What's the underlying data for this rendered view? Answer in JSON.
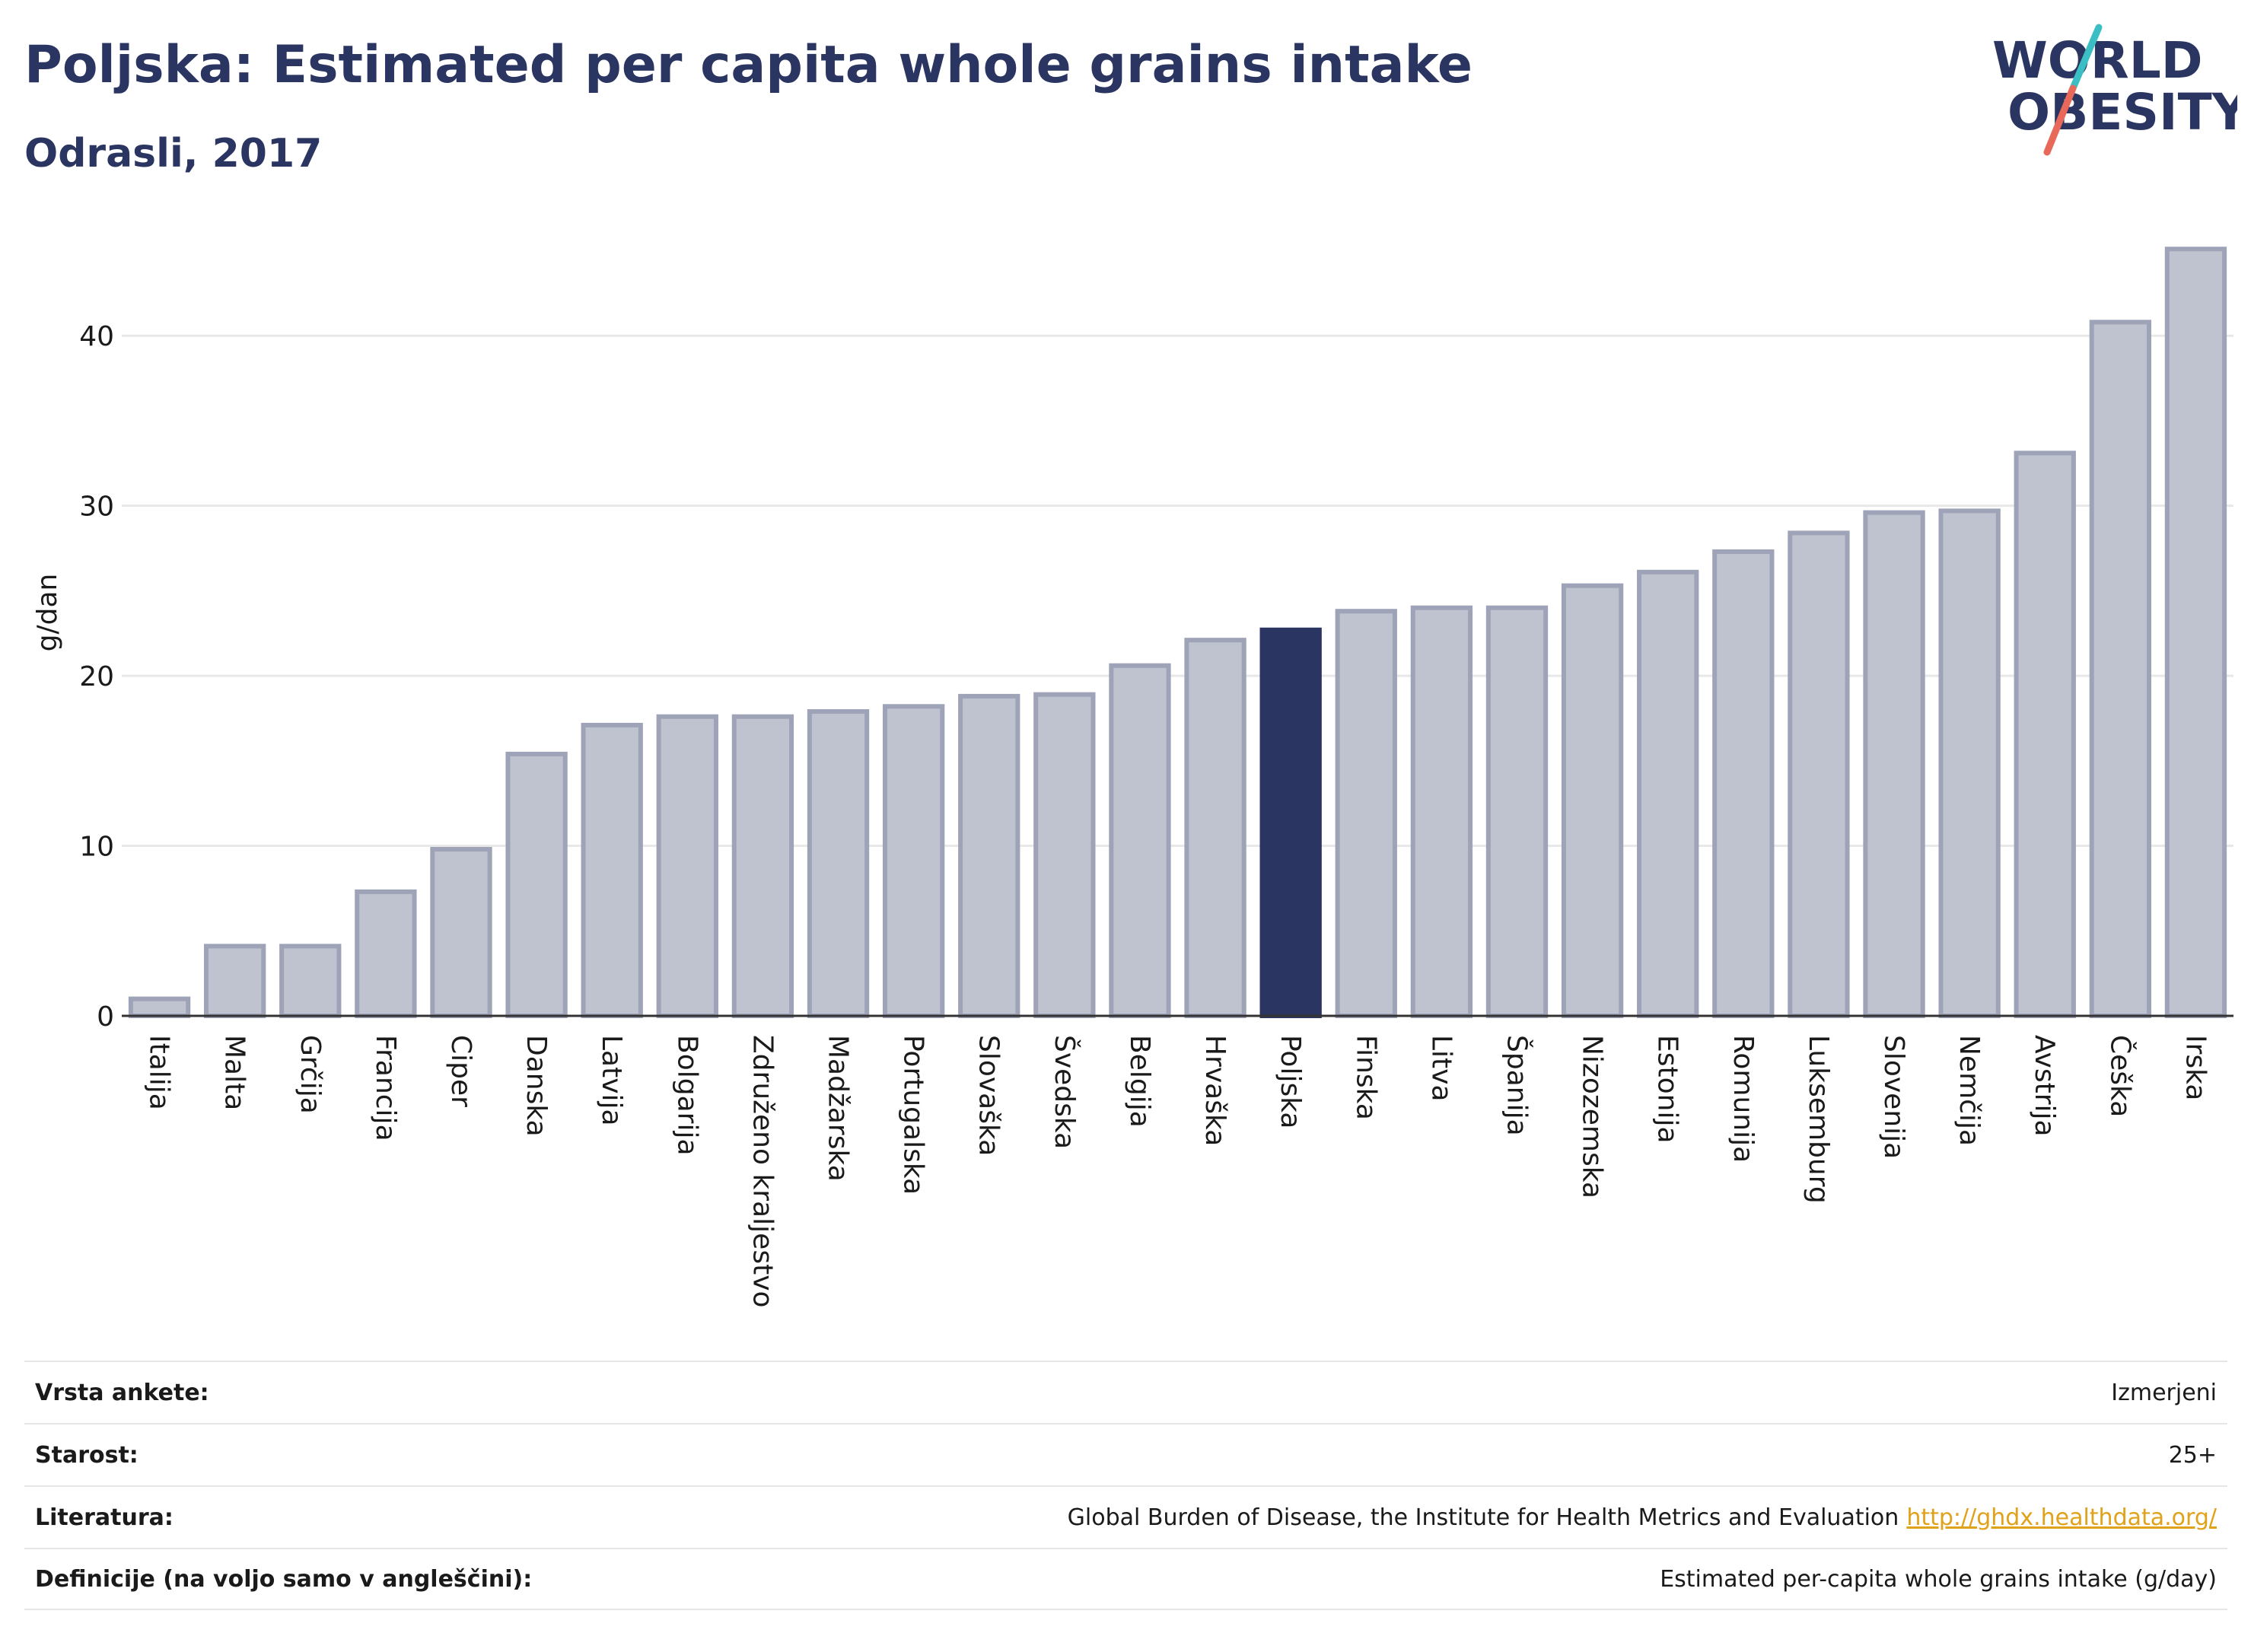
{
  "header": {
    "title": "Poljska: Estimated per capita whole grains intake",
    "subtitle": "Odrasli, 2017"
  },
  "logo": {
    "line1": "WORLD",
    "line2": "OBESITY",
    "colors": {
      "text": "#2b3561",
      "slash_teal": "#3bbfc4",
      "slash_coral": "#e8685a"
    }
  },
  "colors": {
    "bar_default": "#bfc2cf",
    "bar_default_stroke": "#9ea3b8",
    "bar_highlight": "#2b3561",
    "grid": "#e8e8e8",
    "axis": "#333333"
  },
  "chart_data": {
    "type": "bar",
    "ylabel": "g/dan",
    "ylim": [
      0,
      45.2
    ],
    "yticks": [
      0,
      10,
      20,
      30,
      40
    ],
    "grid": true,
    "highlight": "Poljska",
    "categories": [
      "Italija",
      "Malta",
      "Grčija",
      "Francija",
      "Ciper",
      "Danska",
      "Latvija",
      "Bolgarija",
      "Združeno kraljestvo",
      "Madžarska",
      "Portugalska",
      "Slovaška",
      "Švedska",
      "Belgija",
      "Hrvaška",
      "Poljska",
      "Finska",
      "Litva",
      "Španija",
      "Nizozemska",
      "Estonija",
      "Romunija",
      "Luksemburg",
      "Slovenija",
      "Nemčija",
      "Avstrija",
      "Češka",
      "Irska"
    ],
    "values": [
      1.0,
      4.1,
      4.1,
      7.3,
      9.8,
      15.4,
      17.1,
      17.6,
      17.6,
      17.9,
      18.2,
      18.8,
      18.9,
      20.6,
      22.1,
      22.7,
      23.8,
      24.0,
      24.0,
      25.3,
      26.1,
      27.3,
      28.4,
      29.6,
      29.7,
      33.1,
      40.8,
      45.1
    ]
  },
  "info_table": [
    {
      "label": "Vrsta ankete:",
      "value": "Izmerjeni"
    },
    {
      "label": "Starost:",
      "value": "25+"
    },
    {
      "label": "Literatura:",
      "value": "Global Burden of Disease, the Institute for Health Metrics and Evaluation",
      "link": "http://ghdx.healthdata.org/"
    },
    {
      "label": "Definicije (na voljo samo v angleščini):",
      "value": "Estimated per-capita whole grains intake (g/day)"
    }
  ]
}
